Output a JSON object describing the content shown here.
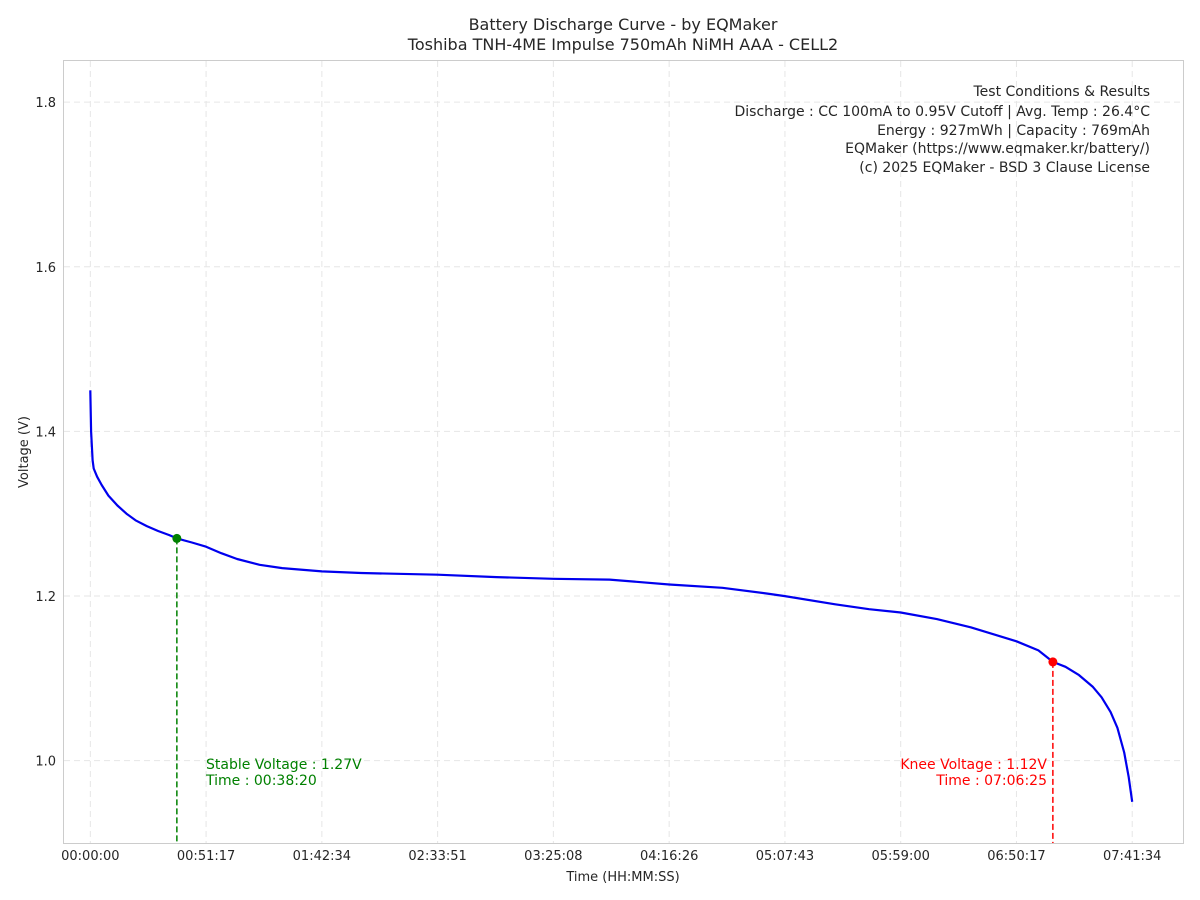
{
  "chart_data": {
    "type": "line",
    "title": "Battery Discharge Curve - by EQMaker",
    "subtitle": "Toshiba TNH-4ME Impulse 750mAh NiMH AAA - CELL2",
    "xlabel": "Time (HH:MM:SS)",
    "ylabel": "Voltage (V)",
    "xlim": [
      "-00:11:40",
      "08:04:04"
    ],
    "ylim": [
      0.9,
      1.85
    ],
    "x_ticks": [
      "00:00:00",
      "00:51:17",
      "01:42:34",
      "02:33:51",
      "03:25:08",
      "04:16:26",
      "05:07:43",
      "05:59:00",
      "06:50:17",
      "07:41:34"
    ],
    "y_ticks": [
      "1.0",
      "1.2",
      "1.4",
      "1.6",
      "1.8"
    ],
    "grid": true,
    "series": [
      {
        "color": "#0000ee",
        "x": [
          "00:00:00",
          "00:00:20",
          "00:01:00",
          "00:01:30",
          "00:03:00",
          "00:05:00",
          "00:08:00",
          "00:12:00",
          "00:16:00",
          "00:20:00",
          "00:25:00",
          "00:30:00",
          "00:35:00",
          "00:38:20",
          "00:45:00",
          "00:51:17",
          "00:58:00",
          "01:05:00",
          "01:15:00",
          "01:25:00",
          "01:42:34",
          "02:00:00",
          "02:33:51",
          "03:00:00",
          "03:25:08",
          "03:50:00",
          "04:16:26",
          "04:40:00",
          "05:00:00",
          "05:07:43",
          "05:30:00",
          "05:45:00",
          "05:59:00",
          "06:15:00",
          "06:30:00",
          "06:50:17",
          "07:00:00",
          "07:06:25",
          "07:12:00",
          "07:18:00",
          "07:24:00",
          "07:28:00",
          "07:32:00",
          "07:35:00",
          "07:38:00",
          "07:40:00",
          "07:41:34"
        ],
        "y": [
          1.45,
          1.4,
          1.365,
          1.355,
          1.345,
          1.335,
          1.322,
          1.31,
          1.3,
          1.292,
          1.285,
          1.279,
          1.274,
          1.27,
          1.265,
          1.26,
          1.252,
          1.245,
          1.238,
          1.234,
          1.23,
          1.228,
          1.226,
          1.223,
          1.221,
          1.22,
          1.214,
          1.21,
          1.203,
          1.2,
          1.19,
          1.184,
          1.18,
          1.172,
          1.162,
          1.145,
          1.134,
          1.12,
          1.114,
          1.104,
          1.09,
          1.077,
          1.059,
          1.04,
          1.01,
          0.98,
          0.95
        ]
      }
    ],
    "points": [
      {
        "label": "Stable Voltage",
        "x": "00:38:20",
        "y": 1.27,
        "color": "#008000"
      },
      {
        "label": "Knee Voltage",
        "x": "07:06:25",
        "y": 1.12,
        "color": "#ff0000"
      }
    ]
  },
  "info_box": {
    "line1": "Test Conditions & Results",
    "line2": "Discharge : CC 100mA to 0.95V Cutoff | Avg. Temp : 26.4°C",
    "line3": "Energy : 927mWh | Capacity : 769mAh",
    "line4": "EQMaker (https://www.eqmaker.kr/battery/)",
    "line5": "(c) 2025 EQMaker - BSD 3 Clause License"
  },
  "annotations": {
    "stable_voltage": "Stable Voltage : 1.27V",
    "stable_time": "Time : 00:38:20",
    "knee_voltage": "Knee Voltage : 1.12V",
    "knee_time": "Time : 07:06:25"
  }
}
